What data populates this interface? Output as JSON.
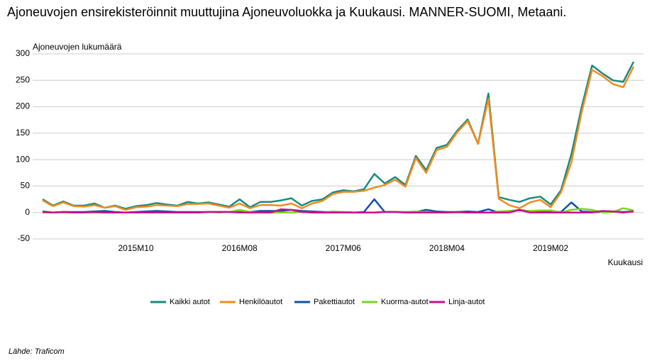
{
  "chart_data": {
    "type": "line",
    "title": "Ajoneuvojen ensirekisteröinnit muuttujina Ajoneuvoluokka ja Kuukausi. MANNER-SUOMI, Metaani.",
    "y_label": "Ajoneuvojen lukumäärä",
    "x_label": "Kuukausi",
    "source": "Lähde: Traficom",
    "categories": [
      null,
      null,
      null,
      null,
      null,
      null,
      null,
      null,
      null,
      "2015M10",
      null,
      null,
      null,
      null,
      null,
      null,
      null,
      null,
      null,
      "2016M08",
      null,
      null,
      null,
      null,
      null,
      null,
      null,
      null,
      null,
      "2017M06",
      null,
      null,
      null,
      null,
      null,
      null,
      null,
      null,
      null,
      "2018M04",
      null,
      null,
      null,
      null,
      null,
      null,
      null,
      null,
      null,
      "2019M02",
      null,
      null,
      null,
      null,
      null,
      null,
      null,
      null
    ],
    "series": [
      {
        "name": "Kaikki autot",
        "color": "#1a8a7e",
        "values": [
          25,
          13,
          21,
          13,
          13,
          17,
          9,
          13,
          7,
          12,
          14,
          18,
          15,
          13,
          20,
          17,
          19,
          15,
          11,
          25,
          10,
          20,
          20,
          23,
          27,
          13,
          22,
          25,
          38,
          42,
          40,
          44,
          73,
          55,
          67,
          52,
          107,
          80,
          122,
          128,
          155,
          176,
          130,
          225,
          29,
          24,
          20,
          27,
          30,
          15,
          42,
          110,
          200,
          278,
          263,
          250,
          247,
          285
        ]
      },
      {
        "name": "Henkilöautot",
        "color": "#f08c1e",
        "values": [
          23,
          12,
          19,
          12,
          11,
          14,
          9,
          12,
          5,
          10,
          11,
          14,
          13,
          12,
          16,
          16,
          17,
          13,
          9,
          17,
          8,
          14,
          14,
          13,
          17,
          8,
          17,
          22,
          35,
          39,
          39,
          41,
          47,
          52,
          62,
          49,
          103,
          75,
          118,
          124,
          152,
          173,
          130,
          215,
          26,
          14,
          8,
          19,
          24,
          10,
          38,
          95,
          190,
          270,
          258,
          243,
          237,
          276
        ]
      },
      {
        "name": "Pakettiautot",
        "color": "#1250a8",
        "values": [
          2,
          0,
          1,
          1,
          1,
          2,
          3,
          1,
          0,
          1,
          2,
          3,
          2,
          1,
          1,
          1,
          1,
          1,
          1,
          1,
          1,
          3,
          3,
          3,
          5,
          3,
          2,
          1,
          1,
          1,
          0,
          1,
          25,
          1,
          1,
          1,
          1,
          5,
          2,
          1,
          1,
          2,
          1,
          6,
          0,
          3,
          4,
          2,
          3,
          1,
          1,
          19,
          2,
          1,
          1,
          2,
          1,
          2
        ]
      },
      {
        "name": "Kuorma-autot",
        "color": "#7ed321",
        "values": [
          0,
          0,
          0,
          0,
          0,
          0,
          0,
          0,
          0,
          0,
          0,
          0,
          0,
          0,
          0,
          0,
          1,
          0,
          1,
          5,
          1,
          0,
          0,
          0,
          0,
          1,
          0,
          0,
          2,
          1,
          0,
          0,
          0,
          1,
          1,
          1,
          2,
          1,
          0,
          0,
          0,
          0,
          0,
          0,
          2,
          3,
          5,
          3,
          4,
          4,
          0,
          5,
          7,
          5,
          0,
          1,
          8,
          4
        ]
      },
      {
        "name": "Linja-autot",
        "color": "#c8108c",
        "values": [
          1,
          0,
          1,
          0,
          0,
          1,
          0,
          0,
          0,
          0,
          0,
          0,
          0,
          0,
          0,
          0,
          1,
          1,
          1,
          0,
          0,
          0,
          0,
          6,
          5,
          1,
          0,
          0,
          0,
          0,
          0,
          0,
          0,
          1,
          1,
          0,
          0,
          0,
          0,
          0,
          1,
          0,
          0,
          0,
          0,
          0,
          5,
          0,
          0,
          0,
          0,
          0,
          0,
          0,
          3,
          2,
          0,
          2
        ]
      }
    ],
    "ylim": [
      -50,
      300
    ],
    "yticks": [
      -50,
      0,
      50,
      100,
      150,
      200,
      250,
      300
    ],
    "grid": true,
    "legend": "bottom"
  }
}
